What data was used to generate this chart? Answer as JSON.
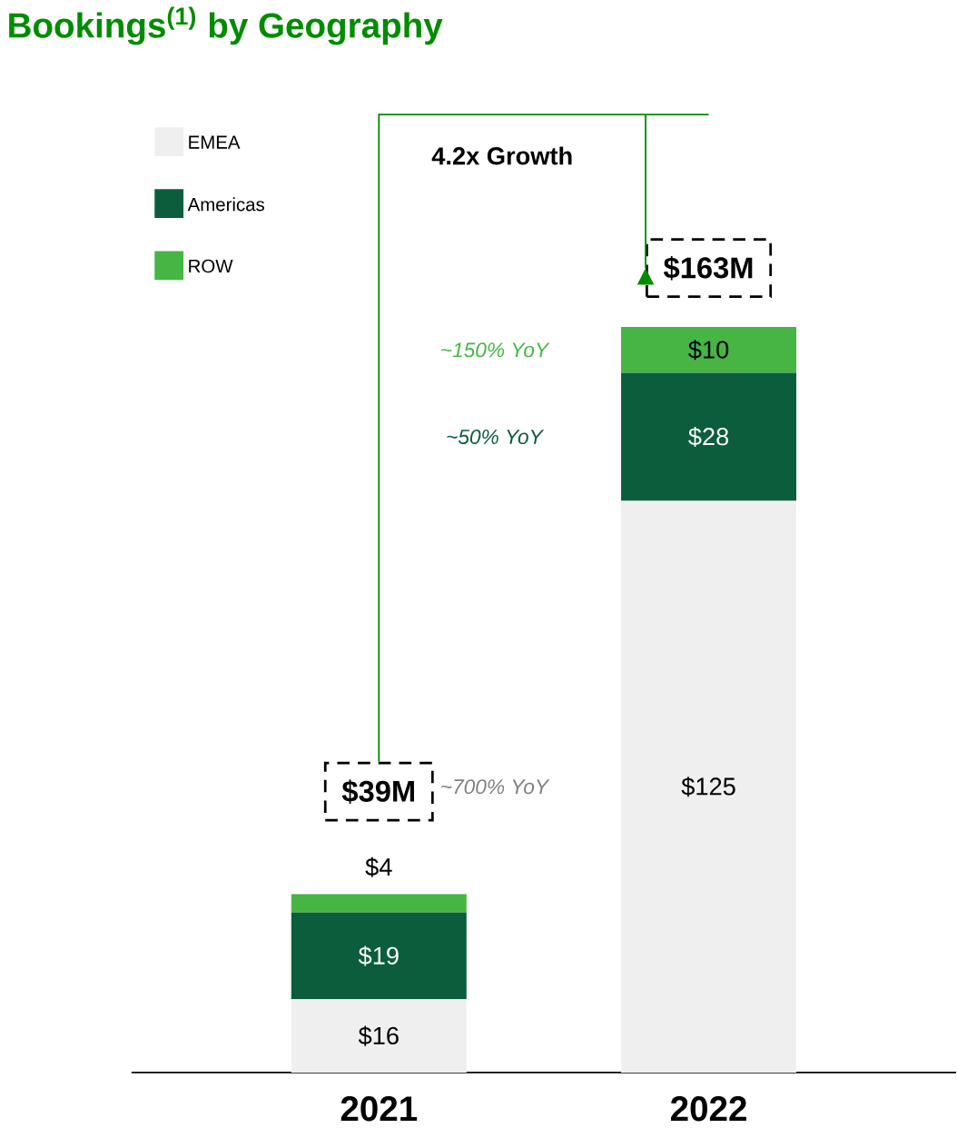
{
  "chart_data": {
    "type": "bar",
    "title": "Bookings$^{(1)}$ by Geography",
    "stacked": true,
    "legend": "top left",
    "categories": [
      "2021",
      "2022"
    ],
    "series": [
      {
        "name": "EMEA",
        "color": "#efefef",
        "values": [
          16,
          125
        ],
        "value_labels": [
          "$16",
          "$125"
        ]
      },
      {
        "name": "Americas",
        "color": "#0b5d3b",
        "values": [
          19,
          28
        ],
        "value_labels": [
          "$19",
          "$28"
        ]
      },
      {
        "name": "ROW",
        "color": "#46b544",
        "values": [
          4,
          10
        ],
        "value_labels": [
          "$4",
          "$10"
        ]
      }
    ],
    "totals": [
      "$39M",
      "$163M"
    ],
    "annotations": [
      "4.2x Growth",
      "~150% YoY",
      "~50% YoY",
      "~700% YoY"
    ]
  }
}
